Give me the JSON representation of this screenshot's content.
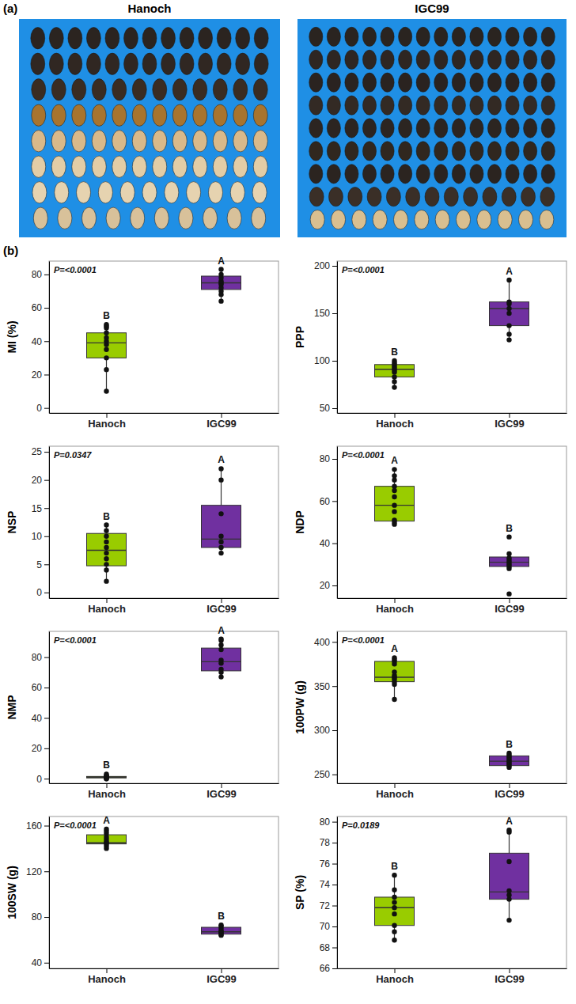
{
  "figure": {
    "panel_a": {
      "label": "(a)",
      "titles": [
        "Hanoch",
        "IGC99"
      ]
    },
    "panel_b": {
      "label": "(b)"
    }
  },
  "chart_data": [
    {
      "type": "box",
      "ylabel": "MI (%)",
      "annotation": "P=<0.0001",
      "categories": [
        "Hanoch",
        "IGC99"
      ],
      "colors": [
        "#99cc00",
        "#7030a0"
      ],
      "group_letters": [
        "B",
        "A"
      ],
      "ylim": [
        -3,
        88
      ],
      "yticks": [
        0,
        20,
        40,
        60,
        80
      ],
      "boxes": [
        {
          "whisker_low": 10,
          "q1": 30,
          "median": 39,
          "q3": 45,
          "whisker_high": 50,
          "points": [
            10,
            23,
            30,
            35,
            38,
            40,
            42,
            45,
            48,
            49,
            50
          ]
        },
        {
          "whisker_low": 64,
          "q1": 71,
          "median": 75,
          "q3": 79,
          "whisker_high": 83,
          "points": [
            64,
            68,
            70,
            72,
            74,
            75,
            76,
            78,
            80,
            83
          ]
        }
      ]
    },
    {
      "type": "box",
      "ylabel": "PPP",
      "annotation": "P=<0.0001",
      "categories": [
        "Hanoch",
        "IGC99"
      ],
      "colors": [
        "#99cc00",
        "#7030a0"
      ],
      "group_letters": [
        "B",
        "A"
      ],
      "ylim": [
        45,
        205
      ],
      "yticks": [
        50,
        100,
        150,
        200
      ],
      "boxes": [
        {
          "whisker_low": 72,
          "q1": 83,
          "median": 91,
          "q3": 96,
          "whisker_high": 100,
          "points": [
            72,
            78,
            83,
            88,
            90,
            92,
            94,
            96,
            98,
            100
          ]
        },
        {
          "whisker_low": 122,
          "q1": 137,
          "median": 155,
          "q3": 162,
          "whisker_high": 185,
          "points": [
            122,
            128,
            137,
            150,
            155,
            160,
            162,
            185
          ]
        }
      ]
    },
    {
      "type": "box",
      "ylabel": "NSP",
      "annotation": "P=0.0347",
      "categories": [
        "Hanoch",
        "IGC99"
      ],
      "colors": [
        "#99cc00",
        "#7030a0"
      ],
      "group_letters": [
        "B",
        "A"
      ],
      "ylim": [
        -1,
        26
      ],
      "yticks": [
        0,
        5,
        10,
        15,
        20,
        25
      ],
      "boxes": [
        {
          "whisker_low": 2,
          "q1": 4.75,
          "median": 7.5,
          "q3": 10.5,
          "whisker_high": 12,
          "points": [
            2,
            4,
            5,
            6,
            7,
            8,
            9,
            10,
            11,
            12
          ]
        },
        {
          "whisker_low": 7,
          "q1": 8,
          "median": 9.5,
          "q3": 15.5,
          "whisker_high": 22,
          "points": [
            7,
            8,
            9,
            10,
            14,
            20,
            22
          ]
        }
      ]
    },
    {
      "type": "box",
      "ylabel": "NDP",
      "annotation": "P=<0.0001",
      "categories": [
        "Hanoch",
        "IGC99"
      ],
      "colors": [
        "#99cc00",
        "#7030a0"
      ],
      "group_letters": [
        "A",
        "B"
      ],
      "ylim": [
        14,
        86
      ],
      "yticks": [
        20,
        40,
        60,
        80
      ],
      "boxes": [
        {
          "whisker_low": 49,
          "q1": 50.5,
          "median": 58,
          "q3": 67,
          "whisker_high": 75,
          "points": [
            49,
            50,
            51,
            55,
            58,
            62,
            65,
            67,
            70,
            72,
            75
          ]
        },
        {
          "whisker_low": 28,
          "q1": 29,
          "median": 31,
          "q3": 33.5,
          "whisker_high": 35,
          "points": [
            16,
            28,
            29,
            30,
            31,
            32,
            33,
            35,
            43
          ]
        }
      ]
    },
    {
      "type": "box",
      "ylabel": "NMP",
      "annotation": "P=<0.0001",
      "categories": [
        "Hanoch",
        "IGC99"
      ],
      "colors": [
        "#99cc00",
        "#7030a0"
      ],
      "group_letters": [
        "B",
        "A"
      ],
      "ylim": [
        -3,
        97
      ],
      "yticks": [
        0,
        20,
        40,
        60,
        80
      ],
      "boxes": [
        {
          "whisker_low": 0,
          "q1": 0.5,
          "median": 1,
          "q3": 1.5,
          "whisker_high": 3,
          "points": [
            0,
            0,
            1,
            1,
            1,
            2,
            2,
            3
          ]
        },
        {
          "whisker_low": 67,
          "q1": 71,
          "median": 77,
          "q3": 86,
          "whisker_high": 92,
          "points": [
            67,
            70,
            72,
            76,
            78,
            85,
            88,
            91,
            92
          ]
        }
      ]
    },
    {
      "type": "box",
      "ylabel": "100PW (g)",
      "annotation": "P=<0.0001",
      "categories": [
        "Hanoch",
        "IGC99"
      ],
      "colors": [
        "#99cc00",
        "#7030a0"
      ],
      "group_letters": [
        "A",
        "B"
      ],
      "ylim": [
        240,
        412
      ],
      "yticks": [
        250,
        300,
        350,
        400
      ],
      "boxes": [
        {
          "whisker_low": 335,
          "q1": 355,
          "median": 360,
          "q3": 378,
          "whisker_high": 382,
          "points": [
            335,
            352,
            355,
            358,
            360,
            362,
            366,
            375,
            378,
            380,
            382
          ]
        },
        {
          "whisker_low": 258,
          "q1": 260,
          "median": 265,
          "q3": 271,
          "whisker_high": 274,
          "points": [
            258,
            260,
            262,
            264,
            266,
            268,
            270,
            272,
            274
          ]
        }
      ]
    },
    {
      "type": "box",
      "ylabel": "100SW (g)",
      "annotation": "P=<0.0001",
      "categories": [
        "Hanoch",
        "IGC99"
      ],
      "colors": [
        "#99cc00",
        "#7030a0"
      ],
      "group_letters": [
        "A",
        "B"
      ],
      "ylim": [
        35,
        168
      ],
      "yticks": [
        40,
        80,
        120,
        160
      ],
      "boxes": [
        {
          "whisker_low": 140,
          "q1": 144,
          "median": 145,
          "q3": 152,
          "whisker_high": 157,
          "points": [
            140,
            142,
            144,
            145,
            146,
            148,
            150,
            153,
            155,
            157
          ]
        },
        {
          "whisker_low": 64,
          "q1": 65,
          "median": 67,
          "q3": 71,
          "whisker_high": 73,
          "points": [
            64,
            65,
            66,
            67,
            68,
            70,
            72,
            73
          ]
        }
      ]
    },
    {
      "type": "box",
      "ylabel": "SP (%)",
      "annotation": "P=0.0189",
      "categories": [
        "Hanoch",
        "IGC99"
      ],
      "colors": [
        "#99cc00",
        "#7030a0"
      ],
      "group_letters": [
        "B",
        "A"
      ],
      "ylim": [
        66,
        80.5
      ],
      "yticks": [
        66,
        68,
        70,
        72,
        74,
        76,
        78,
        80
      ],
      "boxes": [
        {
          "whisker_low": 68.7,
          "q1": 70.1,
          "median": 71.8,
          "q3": 72.8,
          "whisker_high": 74.9,
          "points": [
            68.7,
            69.5,
            70.1,
            71.2,
            71.8,
            72.3,
            72.8,
            73.5,
            74.9
          ]
        },
        {
          "whisker_low": 70.6,
          "q1": 72.6,
          "median": 73.3,
          "q3": 77,
          "whisker_high": 79.2,
          "points": [
            70.6,
            72.6,
            73,
            73.4,
            76.2,
            79,
            79.2
          ]
        }
      ]
    }
  ]
}
